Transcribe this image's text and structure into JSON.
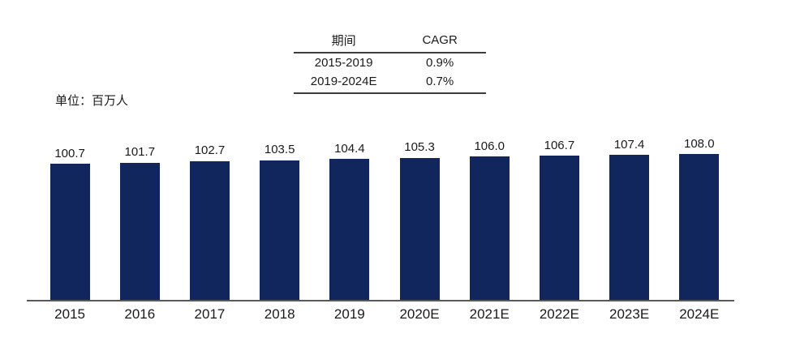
{
  "unit_label": "单位：百万人",
  "cagr_table": {
    "headers": [
      "期间",
      "CAGR"
    ],
    "rows": [
      {
        "period": "2015-2019",
        "cagr": "0.9%"
      },
      {
        "period": "2019-2024E",
        "cagr": "0.7%"
      }
    ]
  },
  "chart_data": {
    "type": "bar",
    "categories": [
      "2015",
      "2016",
      "2017",
      "2018",
      "2019",
      "2020E",
      "2021E",
      "2022E",
      "2023E",
      "2024E"
    ],
    "values": [
      100.7,
      101.7,
      102.7,
      103.5,
      104.4,
      105.3,
      106.0,
      106.7,
      107.4,
      108.0
    ],
    "labels": [
      "100.7",
      "101.7",
      "102.7",
      "103.5",
      "104.4",
      "105.3",
      "106.0",
      "106.7",
      "107.4",
      "108.0"
    ],
    "title": "",
    "xlabel": "",
    "ylabel": "单位：百万人",
    "ylim": [
      0,
      108
    ],
    "grid": false,
    "legend": "none",
    "bar_color": "#12265E",
    "axis_color": "#595959"
  }
}
